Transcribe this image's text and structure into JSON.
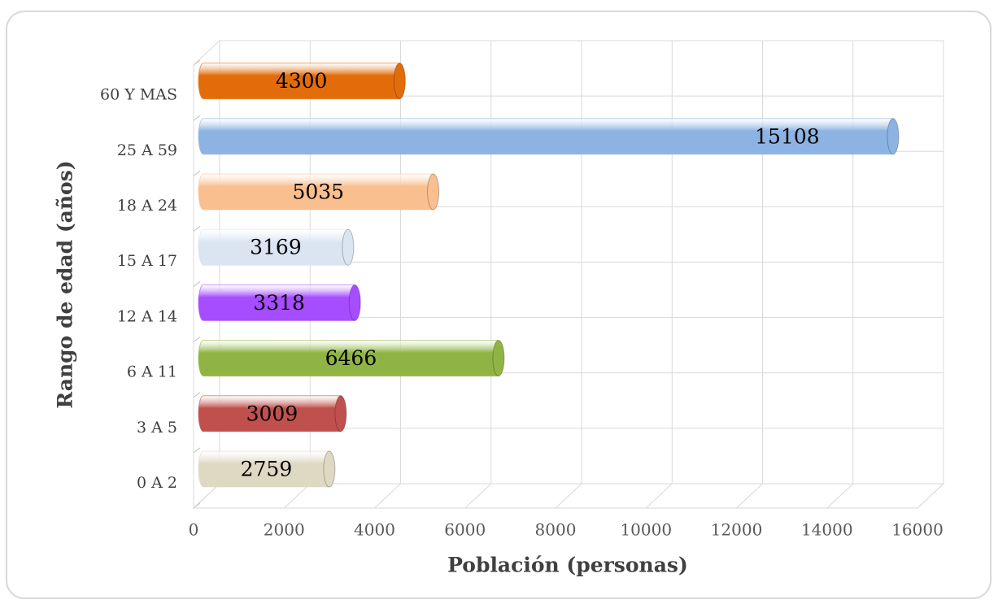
{
  "chart_data": {
    "type": "bar",
    "orientation": "horizontal",
    "x_label": "Población (personas)",
    "y_label": "Rango de edad (años)",
    "categories": [
      "0 A 2",
      "3 A 5",
      "6 A 11",
      "12 A 14",
      "15 A 17",
      "18 A 24",
      "25 A 59",
      "60 Y MAS"
    ],
    "values": [
      2759,
      3009,
      6466,
      3318,
      3169,
      5035,
      15108,
      4300
    ],
    "colors": [
      "#ddd9c3",
      "#c0504d",
      "#8fb443",
      "#a64dff",
      "#dbe5f1",
      "#fabf8f",
      "#8db3e2",
      "#e36c0a"
    ],
    "xlim": [
      0,
      16000
    ],
    "xticks": [
      0,
      2000,
      4000,
      6000,
      8000,
      10000,
      12000,
      14000,
      16000
    ],
    "grid": true
  }
}
